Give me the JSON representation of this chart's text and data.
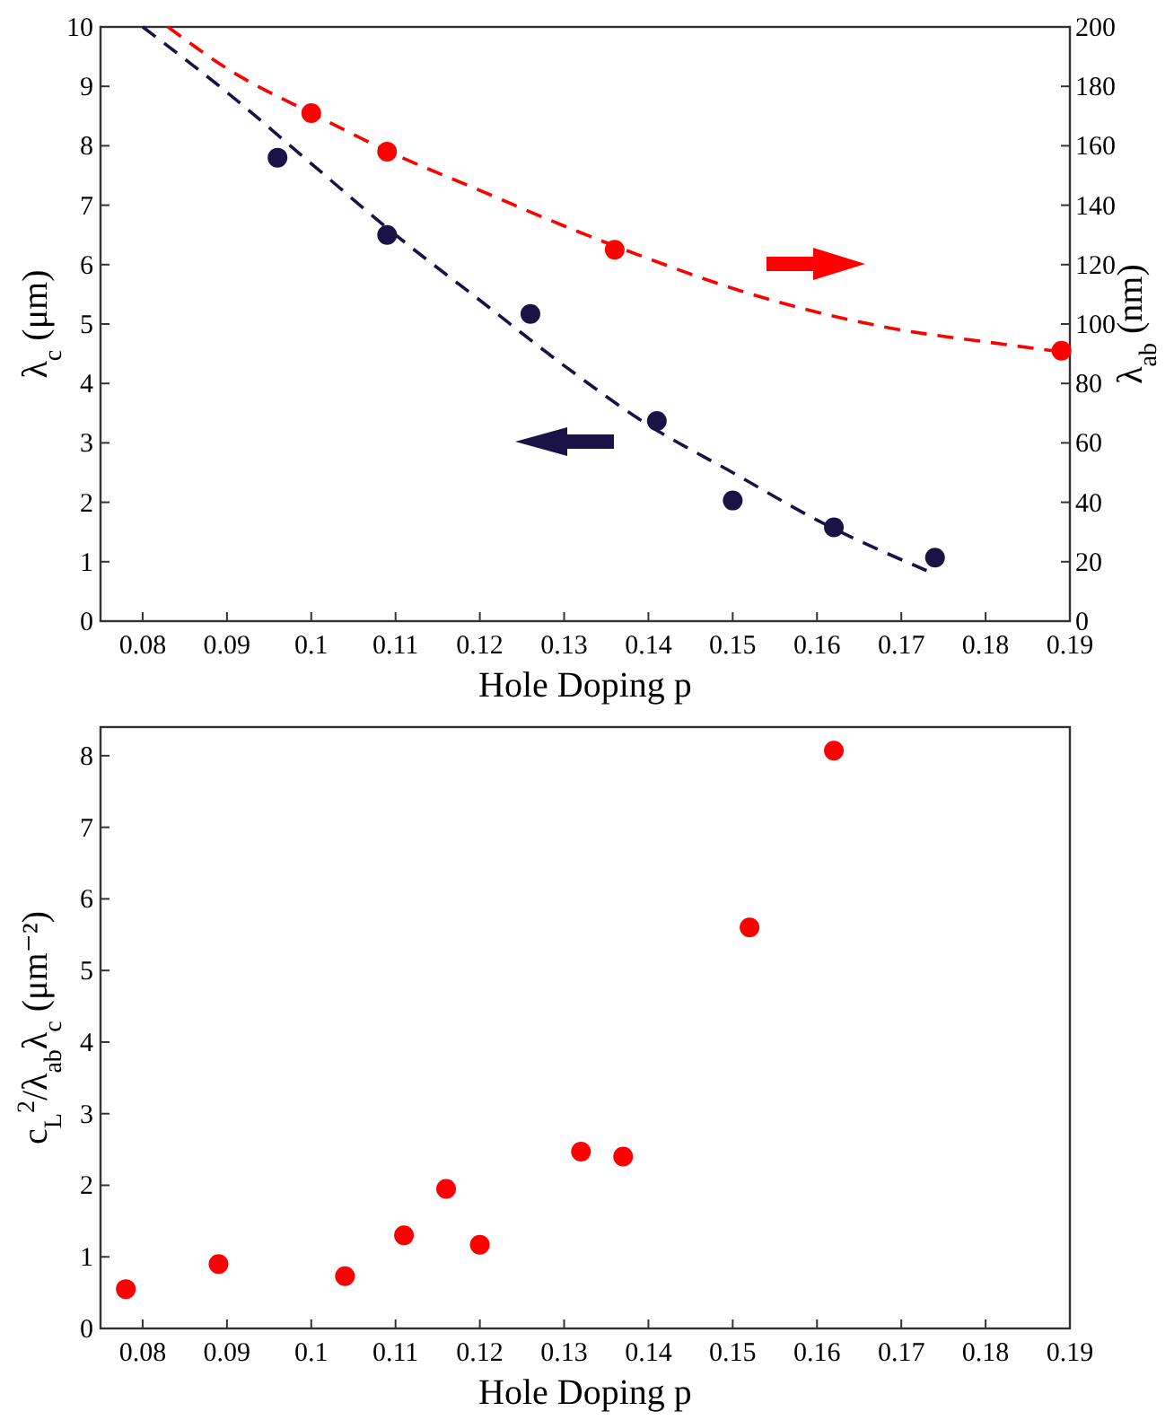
{
  "chart_data": [
    {
      "type": "scatter",
      "xlabel": "Hole Doping p",
      "ylabel": "λ$_{c}$ (μm)",
      "y2label": "λ$_{ab}$ (nm)",
      "xlim": [
        0.075,
        0.19
      ],
      "xticks": [
        0.08,
        0.09,
        0.1,
        0.11,
        0.12,
        0.13,
        0.14,
        0.15,
        0.16,
        0.17,
        0.18,
        0.19
      ],
      "ylim": [
        0,
        10
      ],
      "yticks": [
        0,
        1,
        2,
        3,
        4,
        5,
        6,
        7,
        8,
        9,
        10
      ],
      "y2lim": [
        0,
        200
      ],
      "y2ticks": [
        0,
        20,
        40,
        60,
        80,
        100,
        120,
        140,
        160,
        180,
        200
      ],
      "grid": false,
      "series": [
        {
          "color": "#1a1446",
          "marker": "circle",
          "x": [
            0.096,
            0.109,
            0.126,
            0.141,
            0.15,
            0.162,
            0.174
          ],
          "values": [
            7.8,
            6.5,
            5.17,
            3.37,
            2.03,
            1.58,
            1.07
          ]
        },
        {
          "type": "line",
          "color": "#1a1446",
          "line_style": "dashed",
          "x": [
            0.08,
            0.09,
            0.1,
            0.11,
            0.12,
            0.13,
            0.14,
            0.15,
            0.16,
            0.173
          ],
          "values": [
            10,
            8.9,
            7.7,
            6.5,
            5.4,
            4.3,
            3.3,
            2.5,
            1.7,
            0.85
          ]
        },
        {
          "axis": "y2",
          "color": "#ff0000",
          "marker": "circle",
          "x": [
            0.1,
            0.109,
            0.136,
            0.189
          ],
          "values": [
            171,
            158,
            125,
            91
          ]
        },
        {
          "type": "line",
          "axis": "y2",
          "color": "#ff0000",
          "line_style": "dashed",
          "x": [
            0.083,
            0.09,
            0.1,
            0.11,
            0.12,
            0.13,
            0.14,
            0.15,
            0.16,
            0.17,
            0.18,
            0.188
          ],
          "values": [
            200,
            186,
            171,
            157,
            145,
            133,
            122,
            112,
            104,
            98,
            94,
            91
          ]
        }
      ]
    },
    {
      "type": "scatter",
      "xlabel": "Hole Doping p",
      "ylabel": "c$_{L}$$^{2}$/λ$_{ab}$λ$_{c}$ (μm⁻²)",
      "xlim": [
        0.075,
        0.19
      ],
      "xticks": [
        0.08,
        0.09,
        0.1,
        0.11,
        0.12,
        0.13,
        0.14,
        0.15,
        0.16,
        0.17,
        0.18,
        0.19
      ],
      "ylim": [
        0,
        8.4
      ],
      "yticks": [
        0,
        1,
        2,
        3,
        4,
        5,
        6,
        7,
        8
      ],
      "grid": false,
      "series": [
        {
          "color": "#ff0000",
          "marker": "circle",
          "x": [
            0.078,
            0.089,
            0.104,
            0.111,
            0.116,
            0.12,
            0.132,
            0.137,
            0.152,
            0.162
          ],
          "values": [
            0.55,
            0.9,
            0.73,
            1.3,
            1.95,
            1.17,
            2.47,
            2.4,
            5.6,
            8.07
          ]
        }
      ]
    }
  ]
}
